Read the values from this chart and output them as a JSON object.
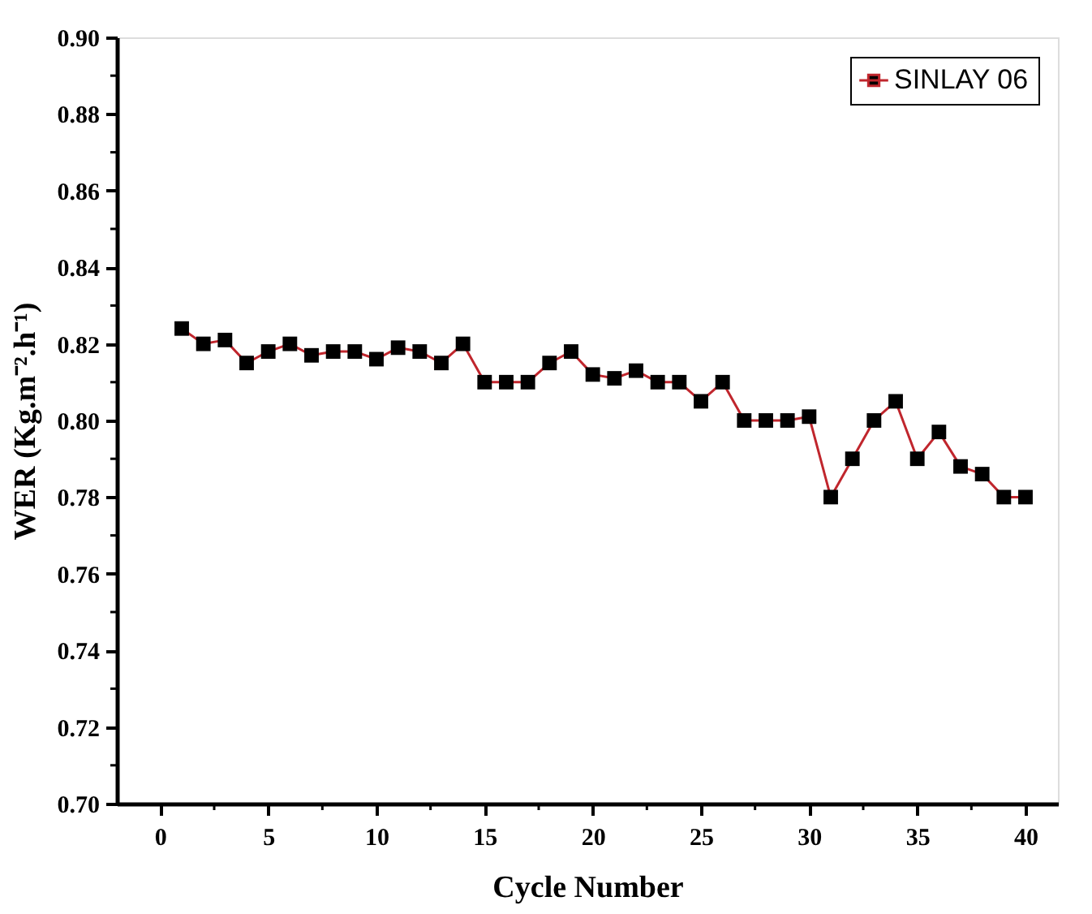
{
  "chart_data": {
    "type": "line",
    "xlabel": "Cycle Number",
    "ylabel": "WER (Kg.m⁻².h⁻¹)",
    "x": [
      1,
      2,
      3,
      4,
      5,
      6,
      7,
      8,
      9,
      10,
      11,
      12,
      13,
      14,
      15,
      16,
      17,
      18,
      19,
      20,
      21,
      22,
      23,
      24,
      25,
      26,
      27,
      28,
      29,
      30,
      31,
      32,
      33,
      34,
      35,
      36,
      37,
      38,
      39,
      40
    ],
    "series": [
      {
        "name": "SINLAY 06",
        "color": "#c0262d",
        "values": [
          0.824,
          0.82,
          0.821,
          0.815,
          0.818,
          0.82,
          0.817,
          0.818,
          0.818,
          0.816,
          0.819,
          0.818,
          0.815,
          0.82,
          0.81,
          0.81,
          0.81,
          0.815,
          0.818,
          0.812,
          0.811,
          0.813,
          0.81,
          0.81,
          0.805,
          0.81,
          0.8,
          0.8,
          0.8,
          0.801,
          0.78,
          0.79,
          0.8,
          0.805,
          0.79,
          0.797,
          0.788,
          0.786,
          0.78,
          0.78
        ]
      }
    ],
    "marker": "square",
    "line_style": "solid",
    "legend": "top right",
    "grid": false,
    "xlim": [
      -2,
      41.5
    ],
    "xticks": [
      0,
      {
        "value": 2.5,
        "label": null
      },
      5,
      {
        "value": 7.5,
        "label": null
      },
      10,
      {
        "value": 12.5,
        "label": null
      },
      15,
      {
        "value": 17.5,
        "label": null
      },
      20,
      {
        "value": 22.5,
        "label": null
      },
      25,
      {
        "value": 27.5,
        "label": null
      },
      30,
      {
        "value": 32.5,
        "label": null
      },
      35,
      {
        "value": 37.5,
        "label": null
      },
      40
    ],
    "ylim": [
      0.7,
      0.9
    ],
    "yticks": [
      {
        "value": 0.7,
        "label": "0.70"
      },
      {
        "value": 0.71,
        "label": null
      },
      {
        "value": 0.72,
        "label": "0.72"
      },
      {
        "value": 0.73,
        "label": null
      },
      {
        "value": 0.74,
        "label": "0.74"
      },
      {
        "value": 0.75,
        "label": null
      },
      {
        "value": 0.76,
        "label": "0.76"
      },
      {
        "value": 0.77,
        "label": null
      },
      {
        "value": 0.78,
        "label": "0.78"
      },
      {
        "value": 0.79,
        "label": null
      },
      {
        "value": 0.8,
        "label": "0.80"
      },
      {
        "value": 0.81,
        "label": null
      },
      {
        "value": 0.82,
        "label": "0.82"
      },
      {
        "value": 0.83,
        "label": null
      },
      {
        "value": 0.84,
        "label": "0.84"
      },
      {
        "value": 0.85,
        "label": null
      },
      {
        "value": 0.86,
        "label": "0.86"
      },
      {
        "value": 0.87,
        "label": null
      },
      {
        "value": 0.88,
        "label": "0.88"
      },
      {
        "value": 0.89,
        "label": null
      },
      {
        "value": 0.9,
        "label": "0.90"
      }
    ]
  }
}
